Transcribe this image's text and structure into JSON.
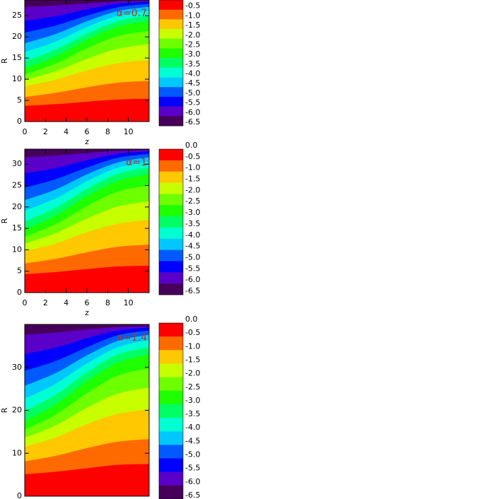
{
  "chart_data": [
    {
      "type": "contour",
      "xlabel": "z",
      "ylabel": "R",
      "annotation": "α=0.7",
      "xlim": [
        0,
        12
      ],
      "ylim": [
        0,
        28.7
      ],
      "xticks": [
        0,
        2,
        4,
        6,
        8,
        10
      ],
      "yticks": [
        0,
        5,
        10,
        15,
        20,
        25
      ],
      "z": [
        0,
        3,
        6,
        9,
        12
      ],
      "boundaries": [
        [
          3.7,
          4.1,
          4.7,
          5.2,
          5.4
        ],
        [
          5.8,
          6.8,
          8.1,
          9.2,
          9.6
        ],
        [
          8.3,
          9.9,
          12.1,
          13.8,
          14.6
        ],
        [
          9.8,
          11.9,
          14.8,
          17.2,
          18.3
        ],
        [
          11.1,
          13.7,
          17.3,
          20.2,
          21.4
        ],
        [
          12.6,
          15.4,
          19.3,
          22.4,
          23.7
        ],
        [
          14.2,
          17.0,
          20.7,
          23.7,
          25.0
        ],
        [
          16.4,
          18.9,
          22.3,
          25.0,
          26.2
        ],
        [
          18.5,
          20.7,
          23.7,
          26.1,
          27.1
        ],
        [
          21.0,
          22.7,
          25.0,
          27.0,
          27.8
        ],
        [
          23.8,
          24.9,
          26.5,
          27.8,
          28.3
        ],
        [
          27.1,
          27.4,
          27.9,
          28.4,
          28.5
        ]
      ],
      "colors": [
        "#ff0000",
        "#ff6a00",
        "#ffc800",
        "#c8ff00",
        "#6eff00",
        "#1eff00",
        "#00ff64",
        "#00ffd2",
        "#00c8ff",
        "#005aff",
        "#0000ff",
        "#5a00c8",
        "#46005a"
      ],
      "cbar_lim": [
        -6.5,
        0
      ],
      "cbar_ticks": [
        -0.5,
        {
          "value": -1,
          "label": "-1.0"
        },
        -1.5,
        {
          "value": -2,
          "label": "-2.0"
        },
        -2.5,
        {
          "value": -3,
          "label": "-3.0"
        },
        -3.5,
        {
          "value": -4,
          "label": "-4.0"
        },
        -4.5,
        {
          "value": -5,
          "label": "-5.0"
        },
        -5.5,
        {
          "value": -6,
          "label": "-6.0"
        },
        -6.5
      ]
    },
    {
      "type": "contour",
      "xlabel": "z",
      "ylabel": "R",
      "annotation": "α=1",
      "xlim": [
        0,
        12
      ],
      "ylim": [
        0,
        33.5
      ],
      "xticks": [
        0,
        2,
        4,
        6,
        8,
        10
      ],
      "yticks": [
        0,
        5,
        10,
        15,
        20,
        25,
        30
      ],
      "z": [
        0,
        3,
        6,
        9,
        12
      ],
      "boundaries": [
        [
          4.3,
          4.8,
          5.5,
          6.1,
          6.3
        ],
        [
          6.8,
          7.9,
          9.4,
          10.7,
          11.2
        ],
        [
          9.7,
          11.5,
          14.1,
          16.1,
          17.0
        ],
        [
          11.4,
          13.9,
          17.3,
          20.1,
          21.3
        ],
        [
          13.0,
          16.0,
          20.2,
          23.6,
          25.0
        ],
        [
          14.7,
          18.0,
          22.5,
          26.1,
          27.7
        ],
        [
          16.6,
          19.8,
          24.2,
          27.7,
          29.2
        ],
        [
          19.1,
          22.0,
          26.0,
          29.2,
          30.6
        ],
        [
          21.6,
          24.1,
          27.6,
          30.4,
          31.6
        ],
        [
          24.5,
          26.5,
          29.2,
          31.5,
          32.4
        ],
        [
          27.8,
          29.1,
          30.9,
          32.4,
          33.0
        ],
        [
          31.6,
          32.0,
          32.6,
          33.1,
          33.3
        ]
      ],
      "colors": [
        "#ff0000",
        "#ff6a00",
        "#ffc800",
        "#c8ff00",
        "#6eff00",
        "#1eff00",
        "#00ff64",
        "#00ffd2",
        "#00c8ff",
        "#005aff",
        "#0000ff",
        "#5a00c8",
        "#46005a"
      ],
      "cbar_lim": [
        -6.5,
        0
      ],
      "cbar_ticks": [
        {
          "value": 0,
          "label": "0.0"
        },
        -0.5,
        {
          "value": -1,
          "label": "-1.0"
        },
        -1.5,
        {
          "value": -2,
          "label": "-2.0"
        },
        -2.5,
        {
          "value": -3,
          "label": "-3.0"
        },
        -3.5,
        {
          "value": -4,
          "label": "-4.0"
        },
        -4.5,
        {
          "value": -5,
          "label": "-5.0"
        },
        -5.5,
        {
          "value": -6,
          "label": "-6.0"
        },
        -6.5
      ]
    },
    {
      "type": "contour",
      "ylabel": "R",
      "annotation": "α=1.4",
      "xlim": [
        0,
        12
      ],
      "ylim": [
        0,
        40
      ],
      "yticks": [
        0,
        10,
        20,
        30
      ],
      "z": [
        0,
        3,
        6,
        9,
        12
      ],
      "boundaries": [
        [
          5.1,
          5.7,
          6.5,
          7.3,
          7.5
        ],
        [
          8.1,
          9.4,
          11.2,
          12.7,
          13.3
        ],
        [
          11.5,
          13.7,
          16.8,
          19.2,
          20.2
        ],
        [
          13.6,
          16.5,
          20.6,
          23.9,
          25.3
        ],
        [
          15.5,
          19.0,
          24.0,
          28.1,
          29.8
        ],
        [
          17.5,
          21.4,
          26.8,
          31.1,
          33.0
        ],
        [
          19.8,
          23.6,
          28.8,
          33.0,
          34.7
        ],
        [
          22.7,
          26.2,
          30.9,
          34.7,
          36.4
        ],
        [
          25.7,
          28.7,
          32.8,
          36.2,
          37.6
        ],
        [
          29.2,
          31.5,
          34.7,
          37.5,
          38.6
        ],
        [
          33.1,
          34.6,
          36.8,
          38.6,
          39.3
        ],
        [
          37.6,
          38.1,
          38.8,
          39.4,
          39.6
        ]
      ],
      "colors": [
        "#ff0000",
        "#ff6a00",
        "#ffc800",
        "#c8ff00",
        "#6eff00",
        "#1eff00",
        "#00ff64",
        "#00ffd2",
        "#00c8ff",
        "#005aff",
        "#0000ff",
        "#5a00c8",
        "#46005a"
      ],
      "cbar_lim": [
        -6.5,
        0
      ],
      "cbar_ticks": [
        {
          "value": 0,
          "label": "0.0"
        },
        -0.5,
        {
          "value": -1,
          "label": "-1.0"
        },
        -1.5,
        {
          "value": -2,
          "label": "-2.0"
        },
        -2.5,
        {
          "value": -3,
          "label": "-3.0"
        },
        -3.5,
        {
          "value": -4,
          "label": "-4.0"
        },
        -4.5,
        {
          "value": -5,
          "label": "-5.0"
        },
        -5.5,
        {
          "value": -6,
          "label": "-6.0"
        },
        -6.5
      ]
    }
  ]
}
